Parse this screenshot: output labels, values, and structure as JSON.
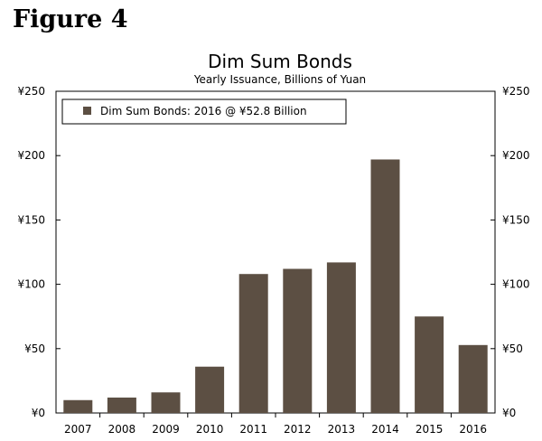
{
  "figure_label": "Figure 4",
  "chart_data": {
    "type": "bar",
    "title": "Dim Sum Bonds",
    "subtitle": "Yearly Issuance, Billions of Yuan",
    "categories": [
      "2007",
      "2008",
      "2009",
      "2010",
      "2011",
      "2012",
      "2013",
      "2014",
      "2015",
      "2016"
    ],
    "series": [
      {
        "name": "Dim Sum Bonds: 2016 @ ¥52.8 Billion",
        "values": [
          10,
          12,
          16,
          36,
          108,
          112,
          117,
          197,
          75,
          52.8
        ]
      }
    ],
    "ylim": [
      0,
      250
    ],
    "yticks": [
      0,
      50,
      100,
      150,
      200,
      250
    ],
    "ytick_labels": [
      "¥0",
      "¥50",
      "¥100",
      "¥150",
      "¥200",
      "¥250"
    ],
    "xlabel": "",
    "ylabel": "",
    "grid": false,
    "legend_position": "top-left",
    "colors": {
      "bar": "#5c4f43",
      "axis": "#000000"
    }
  }
}
